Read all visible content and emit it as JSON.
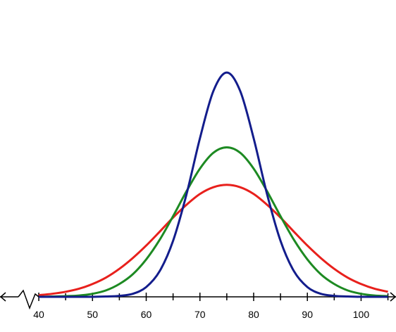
{
  "chart_data": {
    "type": "line",
    "x": [
      40,
      42.5,
      45,
      47.5,
      50,
      52.5,
      55,
      57.5,
      60,
      62.5,
      65,
      67.5,
      70,
      72.5,
      75,
      77.5,
      80,
      82.5,
      85,
      87.5,
      90,
      92.5,
      95,
      97.5,
      100,
      102.5,
      105
    ],
    "series": [
      {
        "color": "#e8201c",
        "values": [
          0.0005,
          0.0009,
          0.0015,
          0.0024,
          0.0038,
          0.0057,
          0.0083,
          0.0115,
          0.0152,
          0.0193,
          0.0235,
          0.0273,
          0.0305,
          0.0325,
          0.0332,
          0.0325,
          0.0305,
          0.0273,
          0.0235,
          0.0193,
          0.0152,
          0.0115,
          0.0083,
          0.0057,
          0.0038,
          0.0024,
          0.0015
        ]
      },
      {
        "color": "#1d8a22",
        "values": [
          0,
          0.0001,
          0.0002,
          0.0004,
          0.0009,
          0.0019,
          0.0038,
          0.0067,
          0.0111,
          0.0169,
          0.0239,
          0.0313,
          0.038,
          0.0427,
          0.0443,
          0.0427,
          0.038,
          0.0313,
          0.0239,
          0.0169,
          0.0111,
          0.0067,
          0.0038,
          0.0019,
          0.0009,
          0.0004,
          0.0002
        ]
      },
      {
        "color": "#131d8c",
        "values": [
          0,
          0,
          0,
          0,
          0,
          0.0001,
          0.0003,
          0.0009,
          0.0029,
          0.0076,
          0.0166,
          0.0304,
          0.047,
          0.061,
          0.0665,
          0.061,
          0.047,
          0.0304,
          0.0166,
          0.0076,
          0.0029,
          0.0009,
          0.0003,
          0.0001,
          0,
          0,
          0
        ]
      }
    ],
    "xlim": [
      32.78,
      106.5
    ],
    "xticks": [
      40,
      50,
      60,
      70,
      80,
      90,
      100
    ],
    "xminorticks": [
      45,
      55,
      65,
      75,
      85,
      95,
      105
    ],
    "ylim": [
      0,
      0.088
    ]
  }
}
